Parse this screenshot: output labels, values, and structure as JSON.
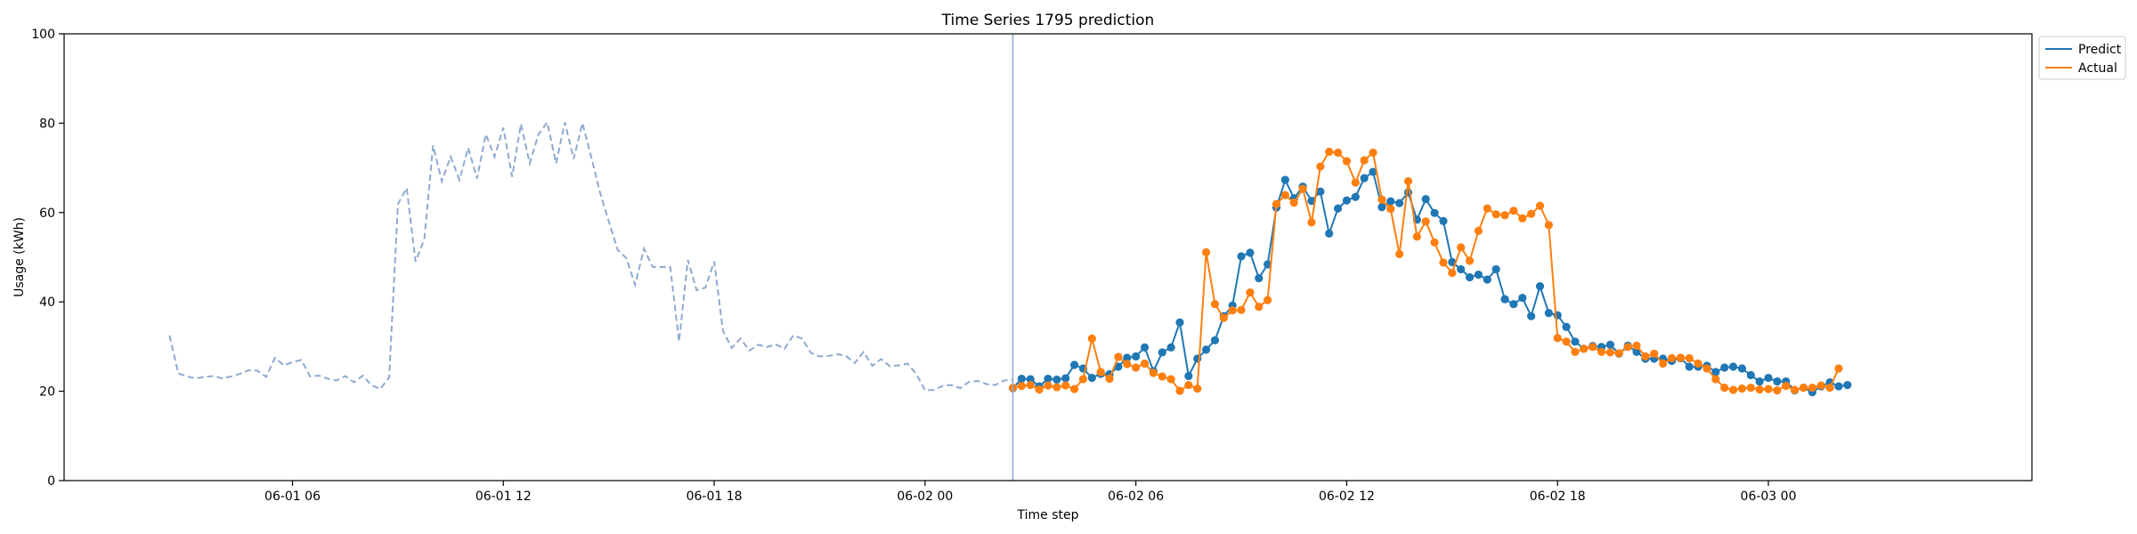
{
  "chart_data": {
    "type": "line",
    "title": "Time Series 1795 prediction",
    "xlabel": "Time step",
    "ylabel": "Usage (kWh)",
    "ylim": [
      0,
      100
    ],
    "yticks": [
      0,
      20,
      40,
      60,
      80,
      100
    ],
    "x_unit": "hours since 06-01 00:00",
    "xlim": [
      -0.5,
      55.5
    ],
    "xticks": [
      {
        "x": 6,
        "label": "06-01 06"
      },
      {
        "x": 12,
        "label": "06-01 12"
      },
      {
        "x": 18,
        "label": "06-01 18"
      },
      {
        "x": 24,
        "label": "06-02 00"
      },
      {
        "x": 30,
        "label": "06-02 06"
      },
      {
        "x": 36,
        "label": "06-02 12"
      },
      {
        "x": 42,
        "label": "06-02 18"
      },
      {
        "x": 48,
        "label": "06-03 00"
      }
    ],
    "forecast_start_x": 26.5,
    "grid": false,
    "legend_position": "upper right, outside plot",
    "history": {
      "x_start": 2.5,
      "x_step": 0.25,
      "style": "dashed",
      "color": "#8fa9cf",
      "values": [
        32.5,
        24,
        23.3,
        22.9,
        23.2,
        23.4,
        22.9,
        23.3,
        23.9,
        24.7,
        24.6,
        23.2,
        27.5,
        25.8,
        26.5,
        27,
        23.3,
        23.5,
        22.8,
        22.4,
        23.4,
        22,
        23.5,
        21.3,
        20.5,
        23.1,
        61.9,
        65.5,
        49,
        54,
        75,
        67,
        72.5,
        67.3,
        74.5,
        67.6,
        77.5,
        72.5,
        79,
        68,
        79.8,
        71,
        77.5,
        80.2,
        71,
        80.2,
        72,
        80,
        72.5,
        64.5,
        58,
        51.7,
        49.8,
        43.8,
        51.9,
        47.8,
        47.8,
        47.8,
        31.1,
        49.4,
        42.6,
        43.2,
        49,
        33.5,
        29.7,
        31.8,
        29.1,
        30.4,
        29.9,
        30.5,
        29.5,
        32.5,
        31.8,
        28.6,
        27.8,
        27.9,
        28.3,
        27.9,
        26.3,
        28.8,
        25.7,
        27.2,
        25.6,
        25.8,
        26.2,
        23.9,
        20.2,
        20.3,
        21.2,
        21.4,
        20.7,
        22.1,
        22.3,
        21.6,
        21.4,
        22.4,
        22.6
      ]
    },
    "series": [
      {
        "name": "Predict",
        "color": "#1f77b4",
        "x_start": 26.5,
        "x_step": 0.25,
        "values": [
          20.7,
          22.8,
          22.7,
          21.1,
          22.8,
          22.6,
          22.9,
          25.9,
          25.1,
          23,
          23.9,
          23.8,
          25.5,
          27.5,
          27.8,
          29.8,
          24.5,
          28.7,
          29.8,
          35.4,
          23.4,
          27.3,
          29.3,
          31.4,
          36.8,
          39.2,
          50.2,
          51,
          45.3,
          48.4,
          61.1,
          67.3,
          63.2,
          65.8,
          62.6,
          64.7,
          55.3,
          60.9,
          62.7,
          63.5,
          67.7,
          69.1,
          61.2,
          62.5,
          62.1,
          64.5,
          58.4,
          63,
          59.9,
          58.1,
          48.9,
          47.3,
          45.5,
          46.1,
          45,
          47.3,
          40.6,
          39.5,
          40.9,
          36.8,
          43.5,
          37.5,
          37,
          34.4,
          31.1,
          29.5,
          30.1,
          29.9,
          30.4,
          28.4,
          30.2,
          28.8,
          27.3,
          27.3,
          27.3,
          26.8,
          27.4,
          25.5,
          25.5,
          25.7,
          24.3,
          25.3,
          25.5,
          25.1,
          23.6,
          22.2,
          23,
          22.2,
          22.2,
          20.2,
          20.8,
          19.8,
          21.1,
          22,
          21.1,
          21.4
        ]
      },
      {
        "name": "Actual",
        "color": "#ff7f0e",
        "x_start": 26.5,
        "x_step": 0.25,
        "values": [
          20.8,
          21.2,
          21.4,
          20.4,
          21.3,
          20.9,
          21.3,
          20.5,
          22.7,
          31.8,
          24.3,
          22.8,
          27.7,
          26.1,
          25.3,
          26.2,
          24.1,
          23.3,
          22.7,
          20.1,
          21.4,
          20.6,
          51.1,
          39.5,
          36.4,
          38.1,
          38.2,
          42.1,
          38.9,
          40.4,
          61.9,
          63.9,
          62.2,
          65.3,
          57.8,
          70.3,
          73.6,
          73.4,
          71.5,
          66.7,
          71.7,
          73.4,
          62.9,
          60.8,
          50.7,
          67,
          54.6,
          58,
          53.3,
          48.8,
          46.5,
          52.2,
          49.2,
          55.9,
          60.9,
          59.6,
          59.4,
          60.4,
          58.7,
          59.7,
          61.5,
          57.2,
          31.9,
          31.1,
          28.8,
          29.5,
          29.9,
          28.8,
          28.7,
          28.5,
          29.9,
          30.2,
          27.8,
          28.4,
          26.2,
          27.4,
          27.5,
          27.4,
          26.2,
          25.1,
          22.7,
          20.8,
          20.3,
          20.6,
          20.8,
          20.4,
          20.5,
          20.2,
          21.2,
          20.3,
          20.8,
          20.8,
          21.3,
          20.8,
          25.1
        ]
      }
    ]
  }
}
